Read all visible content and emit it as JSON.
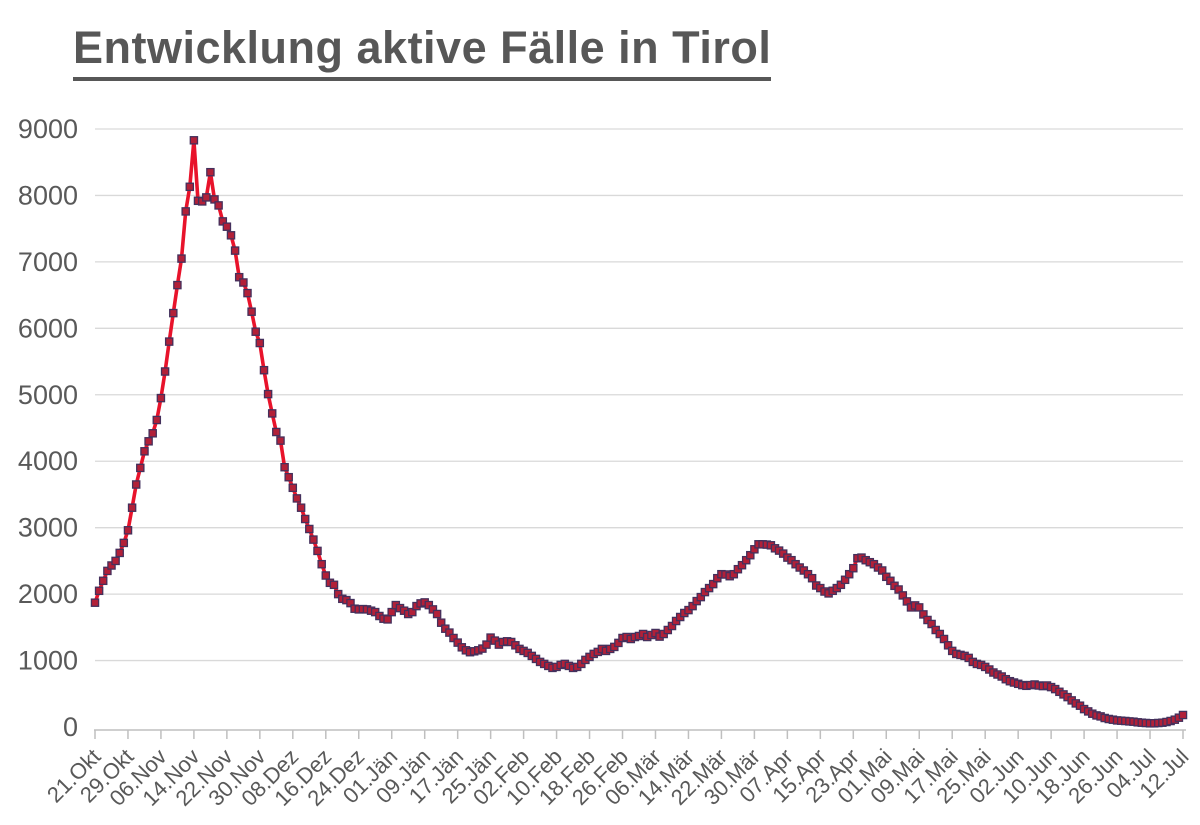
{
  "page": {
    "background": "#ffffff"
  },
  "chart_data": {
    "type": "line",
    "title": "Entwicklung aktive Fälle in Tirol",
    "xlabel": "",
    "ylabel": "",
    "ylim": [
      0,
      9000
    ],
    "grid": "horizontal",
    "legend": "none",
    "y_ticks": [
      0,
      1000,
      2000,
      3000,
      4000,
      5000,
      6000,
      7000,
      8000,
      9000
    ],
    "y_tick_labels": [
      "0",
      "1000",
      "2000",
      "3000",
      "4000",
      "5000",
      "6000",
      "7000",
      "8000",
      "9000"
    ],
    "x_tick_labels": [
      "21.Okt",
      "29.Okt",
      "06.Nov",
      "14.Nov",
      "22.Nov",
      "30.Nov",
      "08.Dez",
      "16.Dez",
      "24.Dez",
      "01.Jän",
      "09.Jän",
      "17.Jän",
      "25.Jän",
      "02.Feb",
      "10.Feb",
      "18.Feb",
      "26.Feb",
      "06.Mär",
      "14.Mär",
      "22.Mär",
      "30.Mär",
      "07.Apr",
      "15.Apr",
      "23.Apr",
      "01.Mai",
      "09.Mai",
      "17.Mai",
      "25.Mai",
      "02.Jun",
      "10.Jun",
      "18.Jun",
      "26.Jun",
      "04.Jul",
      "12.Jul"
    ],
    "x_tick_every_n_points": 8,
    "style": {
      "text_color": "#595959",
      "gridline_color": "#d9d9d9",
      "axis_color": "#bfbfbf",
      "title_color": "#575757"
    },
    "series": [
      {
        "marker": "square",
        "line_color": "#e8132b",
        "marker_fill": "#b22038",
        "marker_border": "#44305c",
        "values": [
          1870,
          2050,
          2200,
          2350,
          2430,
          2500,
          2620,
          2770,
          2960,
          3300,
          3650,
          3900,
          4150,
          4300,
          4420,
          4620,
          4950,
          5350,
          5800,
          6230,
          6650,
          7050,
          7760,
          8130,
          8830,
          7920,
          7910,
          7970,
          8350,
          7940,
          7850,
          7610,
          7530,
          7400,
          7170,
          6770,
          6690,
          6530,
          6250,
          5950,
          5780,
          5370,
          5010,
          4720,
          4440,
          4310,
          3910,
          3760,
          3600,
          3440,
          3300,
          3130,
          2980,
          2820,
          2650,
          2450,
          2280,
          2170,
          2140,
          2000,
          1930,
          1910,
          1865,
          1780,
          1770,
          1775,
          1770,
          1750,
          1730,
          1670,
          1630,
          1620,
          1730,
          1835,
          1790,
          1750,
          1700,
          1730,
          1820,
          1860,
          1875,
          1835,
          1770,
          1700,
          1570,
          1480,
          1420,
          1340,
          1270,
          1200,
          1155,
          1125,
          1140,
          1155,
          1180,
          1240,
          1345,
          1300,
          1240,
          1280,
          1290,
          1280,
          1230,
          1175,
          1145,
          1115,
          1070,
          1025,
          980,
          950,
          920,
          890,
          905,
          935,
          950,
          920,
          890,
          905,
          950,
          1010,
          1055,
          1100,
          1130,
          1175,
          1145,
          1175,
          1205,
          1265,
          1340,
          1355,
          1325,
          1355,
          1370,
          1400,
          1355,
          1385,
          1415,
          1360,
          1400,
          1460,
          1520,
          1595,
          1655,
          1715,
          1760,
          1820,
          1895,
          1955,
          2030,
          2090,
          2150,
          2240,
          2300,
          2295,
          2270,
          2300,
          2375,
          2435,
          2510,
          2585,
          2675,
          2750,
          2750,
          2745,
          2735,
          2690,
          2655,
          2610,
          2550,
          2510,
          2450,
          2400,
          2355,
          2300,
          2240,
          2130,
          2090,
          2040,
          2010,
          2050,
          2090,
          2140,
          2215,
          2300,
          2390,
          2540,
          2550,
          2510,
          2480,
          2450,
          2400,
          2355,
          2260,
          2200,
          2125,
          2070,
          1980,
          1890,
          1800,
          1830,
          1800,
          1695,
          1610,
          1550,
          1460,
          1400,
          1325,
          1230,
          1145,
          1100,
          1085,
          1070,
          1040,
          980,
          950,
          935,
          905,
          865,
          820,
          790,
          760,
          720,
          690,
          670,
          650,
          630,
          620,
          630,
          640,
          625,
          615,
          625,
          600,
          570,
          530,
          490,
          450,
          400,
          355,
          320,
          270,
          235,
          200,
          175,
          160,
          135,
          120,
          110,
          100,
          95,
          90,
          85,
          80,
          70,
          65,
          60,
          55,
          55,
          60,
          65,
          75,
          90,
          110,
          140,
          180
        ]
      }
    ]
  }
}
